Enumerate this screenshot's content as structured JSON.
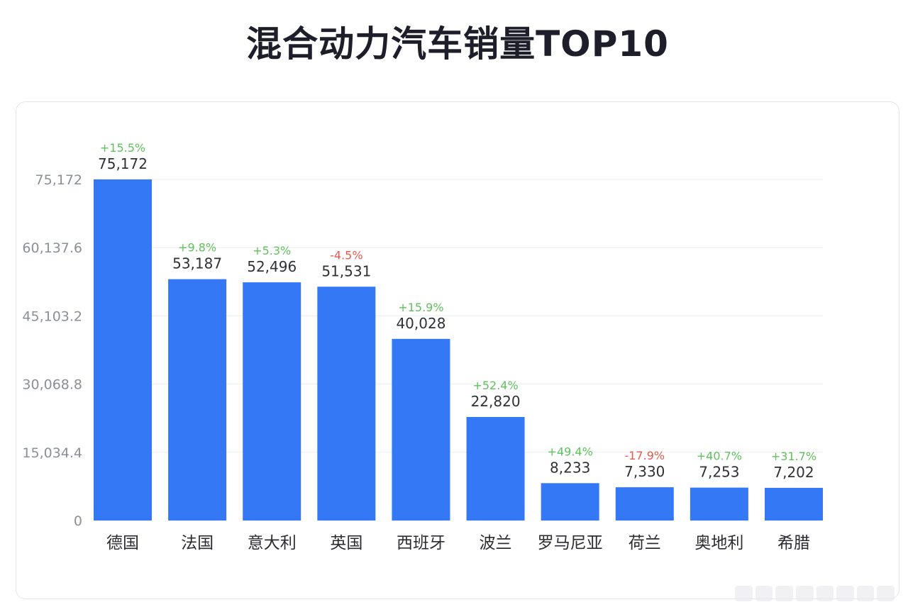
{
  "title": "混合动力汽车销量TOP10",
  "colors": {
    "bar": "#3478f6",
    "positive": "#5fc25b",
    "negative": "#e8594a",
    "grid": "#eceef2"
  },
  "chart_data": {
    "type": "bar",
    "title": "混合动力汽车销量TOP10",
    "xlabel": "",
    "ylabel": "",
    "ylim": [
      0,
      75172
    ],
    "yticks": [
      "0",
      "15,034.4",
      "30,068.8",
      "45,103.2",
      "60,137.6",
      "75,172"
    ],
    "ytick_values": [
      0,
      15034.4,
      30068.8,
      45103.2,
      60137.6,
      75172
    ],
    "grid": true,
    "categories": [
      "德国",
      "法国",
      "意大利",
      "英国",
      "西班牙",
      "波兰",
      "罗马尼亚",
      "荷兰",
      "奥地利",
      "希腊"
    ],
    "values": [
      75172,
      53187,
      52496,
      51531,
      40028,
      22820,
      8233,
      7330,
      7253,
      7202
    ],
    "value_labels": [
      "75,172",
      "53,187",
      "52,496",
      "51,531",
      "40,028",
      "22,820",
      "8,233",
      "7,330",
      "7,253",
      "7,202"
    ],
    "changes": [
      "+15.5%",
      "+9.8%",
      "+5.3%",
      "-4.5%",
      "+15.9%",
      "+52.4%",
      "+49.4%",
      "-17.9%",
      "+40.7%",
      "+31.7%"
    ]
  }
}
